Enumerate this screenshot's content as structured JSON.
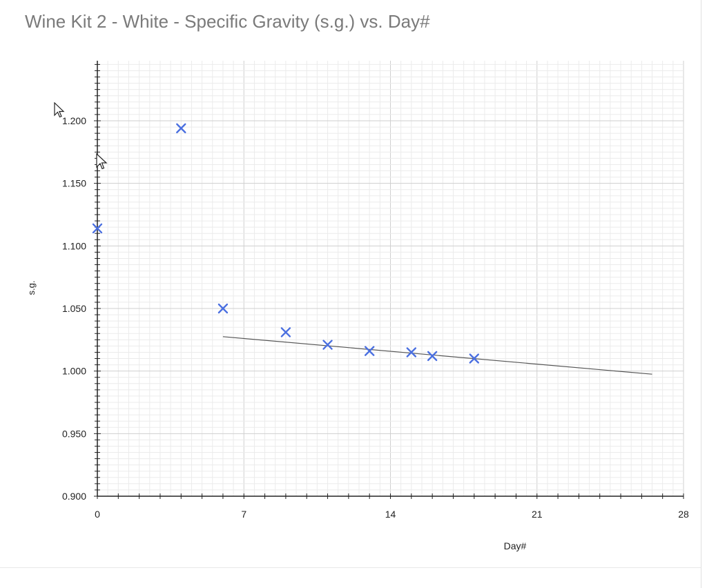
{
  "chart_data": {
    "type": "scatter",
    "title": "Wine Kit 2 - White - Specific Gravity (s.g.) vs. Day#",
    "xlabel": "Day#",
    "ylabel": "s.g.",
    "xlim": [
      0,
      28
    ],
    "ylim": [
      0.9,
      1.245
    ],
    "x_ticks": [
      "0",
      "7",
      "14",
      "21",
      "28"
    ],
    "y_ticks": [
      "0.900",
      "0.950",
      "1.000",
      "1.050",
      "1.100",
      "1.150",
      "1.200"
    ],
    "grid": true,
    "legend": "none",
    "marker": "x",
    "marker_color": "#4a6fe0",
    "points": [
      {
        "x": 0,
        "y": 1.114
      },
      {
        "x": 4,
        "y": 1.194
      },
      {
        "x": 6,
        "y": 1.05
      },
      {
        "x": 9,
        "y": 1.031
      },
      {
        "x": 11,
        "y": 1.021
      },
      {
        "x": 13,
        "y": 1.016
      },
      {
        "x": 15,
        "y": 1.015
      },
      {
        "x": 16,
        "y": 1.012
      },
      {
        "x": 18,
        "y": 1.01
      }
    ],
    "trendline": {
      "x": [
        6,
        26.5
      ],
      "y": [
        1.0275,
        0.9975
      ],
      "color": "#555555"
    }
  }
}
